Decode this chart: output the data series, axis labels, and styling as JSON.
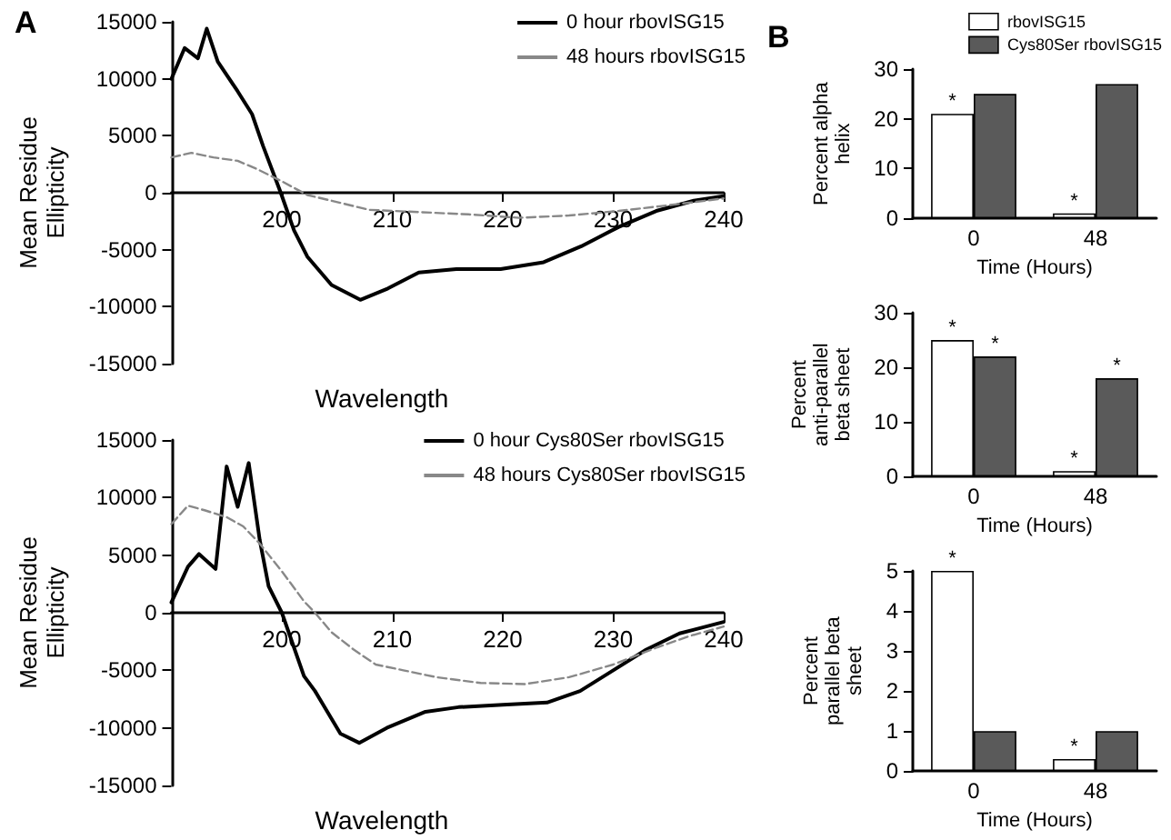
{
  "chart_data": [
    {
      "type": "line",
      "annotations": [
        "A"
      ],
      "xlabel": "Wavelength",
      "ylabel": "Mean Residue Ellipticity",
      "xlim": [
        190,
        240
      ],
      "xticks": [
        200,
        210,
        220,
        230,
        240
      ],
      "ylim": [
        -15000,
        15000
      ],
      "yticks": [
        -15000,
        -10000,
        -5000,
        0,
        5000,
        10000,
        15000
      ],
      "grid": false,
      "legend": "top right",
      "marker": "none",
      "series": [
        {
          "name": "0 hour rbovISG15",
          "color": "#000000",
          "line_style": "solid",
          "x": [
            190,
            191.2,
            192.4,
            193.2,
            194.2,
            196,
            197.3,
            198.3,
            199.9,
            201.1,
            202.3,
            204.5,
            207.1,
            209.6,
            212.4,
            215.8,
            219.8,
            223.7,
            227.1,
            230.5,
            233.9,
            237.3,
            240
          ],
          "values": [
            10000,
            12700,
            11800,
            14400,
            11500,
            8900,
            6900,
            4100,
            0,
            -3300,
            -5600,
            -8100,
            -9400,
            -8400,
            -7000,
            -6700,
            -6700,
            -6100,
            -4700,
            -3000,
            -1600,
            -700,
            -300
          ]
        },
        {
          "name": "48 hours rbovISG15",
          "color": "#888888",
          "line_style": "dashed",
          "x": [
            190,
            191.8,
            193.8,
            196,
            197.7,
            200,
            202.3,
            204.5,
            207.9,
            212.4,
            216.9,
            221.5,
            226,
            230.5,
            235,
            240
          ],
          "values": [
            3100,
            3500,
            3100,
            2800,
            2100,
            1000,
            -200,
            -700,
            -1500,
            -1700,
            -1900,
            -2200,
            -2000,
            -1600,
            -1100,
            -500
          ]
        }
      ]
    },
    {
      "type": "line",
      "xlabel": "Wavelength",
      "ylabel": "Mean Residue Ellipticity",
      "xlim": [
        190,
        240
      ],
      "xticks": [
        200,
        210,
        220,
        230,
        240
      ],
      "ylim": [
        -15000,
        15000
      ],
      "yticks": [
        -15000,
        -10000,
        -5000,
        0,
        5000,
        10000,
        15000
      ],
      "grid": false,
      "legend": "top right",
      "marker": "none",
      "series": [
        {
          "name": "0 hour Cys80Ser rbovISG15",
          "color": "#000000",
          "line_style": "solid",
          "x": [
            190,
            191.5,
            192.5,
            194,
            195,
            196,
            197,
            198,
            198.8,
            200,
            202,
            203,
            205.3,
            207,
            209.5,
            213,
            216,
            220,
            224,
            227,
            230,
            233,
            236,
            240
          ],
          "values": [
            900,
            4000,
            5100,
            3800,
            12700,
            9200,
            13000,
            6300,
            2300,
            0,
            -5500,
            -6800,
            -10500,
            -11300,
            -10000,
            -8600,
            -8200,
            -8000,
            -7800,
            -6800,
            -5000,
            -3200,
            -1800,
            -800
          ]
        },
        {
          "name": "48 hours Cys80Ser rbovISG15",
          "color": "#888888",
          "line_style": "dashed",
          "x": [
            190,
            191.5,
            193,
            195,
            196.5,
            198,
            200,
            202,
            203,
            204.5,
            206.5,
            208.5,
            211,
            214,
            218,
            222,
            226,
            230,
            234,
            237,
            240
          ],
          "values": [
            7700,
            9300,
            8900,
            8300,
            7500,
            6000,
            3600,
            1000,
            0,
            -1700,
            -3200,
            -4500,
            -5000,
            -5600,
            -6100,
            -6200,
            -5600,
            -4500,
            -3000,
            -2000,
            -1200
          ]
        }
      ]
    },
    {
      "type": "bar",
      "annotations": [
        "B"
      ],
      "categories": [
        "0",
        "48"
      ],
      "xlabel": "Time (Hours)",
      "ylabel": "Percent alpha helix",
      "ylim": [
        0,
        30
      ],
      "yticks": [
        0,
        10,
        20,
        30
      ],
      "grid": false,
      "legend": "top",
      "series": [
        {
          "name": "rbovISG15",
          "color": "#ffffff",
          "values": [
            21,
            1
          ],
          "value_labels": [
            "*",
            "*"
          ]
        },
        {
          "name": "Cys80Ser rbovISG15",
          "color": "#5a5a5a",
          "values": [
            25,
            27
          ]
        }
      ]
    },
    {
      "type": "bar",
      "categories": [
        "0",
        "48"
      ],
      "xlabel": "Time (Hours)",
      "ylabel": "Percent anti-parallel beta sheet",
      "ylim": [
        0,
        30
      ],
      "yticks": [
        0,
        10,
        20,
        30
      ],
      "grid": false,
      "legend": false,
      "series": [
        {
          "color": "#ffffff",
          "values": [
            25,
            1
          ],
          "value_labels": [
            "*",
            "*"
          ]
        },
        {
          "color": "#5a5a5a",
          "values": [
            22,
            18
          ],
          "value_labels": [
            "*",
            "*"
          ]
        }
      ]
    },
    {
      "type": "bar",
      "categories": [
        "0",
        "48"
      ],
      "xlabel": "Time (Hours)",
      "ylabel": "Percent parallel beta sheet",
      "ylim": [
        0,
        5
      ],
      "yticks": [
        0,
        1,
        2,
        3,
        4,
        5
      ],
      "grid": false,
      "legend": false,
      "series": [
        {
          "color": "#ffffff",
          "values": [
            5,
            0.3
          ],
          "value_labels": [
            "*",
            "*"
          ]
        },
        {
          "color": "#5a5a5a",
          "values": [
            1,
            1
          ]
        }
      ]
    }
  ]
}
